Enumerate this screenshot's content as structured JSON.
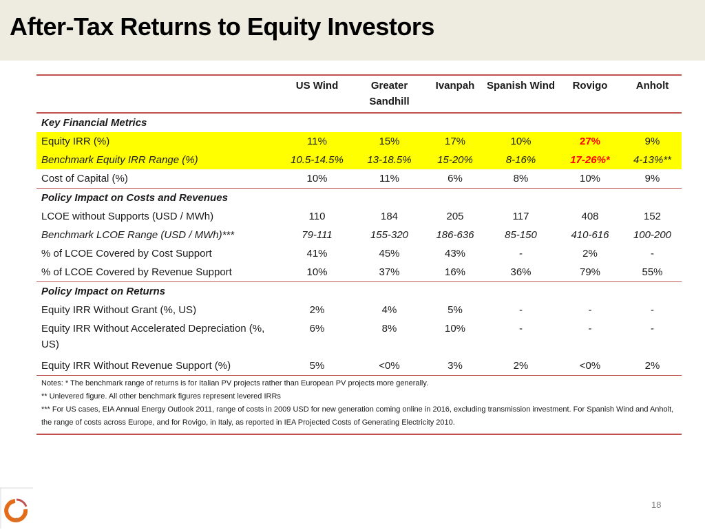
{
  "slide": {
    "title": "After-Tax Returns to Equity Investors",
    "page_number": "18"
  },
  "table": {
    "columns": [
      "",
      "US Wind",
      "Greater Sandhill",
      "Ivanpah",
      "Spanish Wind",
      "Rovigo",
      "Anholt"
    ],
    "sections": {
      "key_metrics": "Key Financial Metrics",
      "costs_revenues": "Policy Impact on Costs and Revenues",
      "returns": "Policy Impact on Returns"
    },
    "rows": {
      "equity_irr": {
        "label": "Equity IRR (%)",
        "values": [
          "11%",
          "15%",
          "17%",
          "10%",
          "27%",
          "9%"
        ]
      },
      "benchmark_irr": {
        "label": "Benchmark Equity IRR Range (%)",
        "values": [
          "10.5-14.5%",
          "13-18.5%",
          "15-20%",
          "8-16%",
          "17-26%*",
          "4-13%**"
        ]
      },
      "cost_of_capital": {
        "label": "Cost of Capital (%)",
        "values": [
          "10%",
          "11%",
          "6%",
          "8%",
          "10%",
          "9%"
        ]
      },
      "lcoe": {
        "label": "LCOE without Supports  (USD / MWh)",
        "values": [
          "110",
          "184",
          "205",
          "117",
          "408",
          "152"
        ]
      },
      "benchmark_lcoe": {
        "label": "Benchmark LCOE Range (USD / MWh)***",
        "values": [
          "79-111",
          "155-320",
          "186-636",
          "85-150",
          "410-616",
          "100-200"
        ]
      },
      "lcoe_cost_support": {
        "label": "% of LCOE Covered by Cost Support",
        "values": [
          "41%",
          "45%",
          "43%",
          "-",
          "2%",
          "-"
        ]
      },
      "lcoe_revenue_support": {
        "label": "% of LCOE Covered by Revenue Support",
        "values": [
          "10%",
          "37%",
          "16%",
          "36%",
          "79%",
          "55%"
        ]
      },
      "irr_no_grant": {
        "label": "Equity IRR Without Grant (%, US)",
        "values": [
          "2%",
          "4%",
          "5%",
          "-",
          "-",
          "-"
        ]
      },
      "irr_no_depreciation": {
        "label": "Equity IRR Without Accelerated Depreciation (%, US)",
        "values": [
          "6%",
          "8%",
          "10%",
          "-",
          "-",
          "-"
        ]
      },
      "irr_no_revenue_support": {
        "label": "Equity IRR Without Revenue Support (%)",
        "values": [
          "5%",
          "<0%",
          "3%",
          "2%",
          "<0%",
          "2%"
        ]
      }
    }
  },
  "notes": [
    "Notes: * The benchmark range of returns is for Italian PV projects rather than European PV projects more generally.",
    "** Unlevered figure. All other benchmark figures represent levered IRRs",
    "*** For US cases, EIA Annual Energy Outlook 2011, range of costs in 2009 USD for new generation coming online in 2016, excluding transmission investment. For Spanish Wind and Anholt, the range of costs across Europe, and for Rovigo, in Italy, as reported in IEA Projected Costs of Generating Electricity 2010."
  ],
  "colors": {
    "highlight": "#ffff00",
    "accent_line": "#c0504d",
    "emphasis_text": "#ff0000",
    "title_band": "#eeece1"
  },
  "logo": {
    "icon": "circle-arc-logo-icon"
  }
}
